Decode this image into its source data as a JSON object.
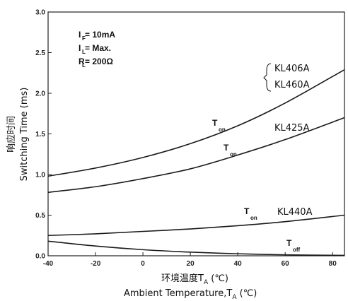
{
  "chart_data": {
    "type": "line",
    "xlim": [
      -40,
      85
    ],
    "ylim": [
      0,
      3.0
    ],
    "x_ticks": [
      "-40",
      "-20",
      "0",
      "20",
      "40",
      "60",
      "80"
    ],
    "y_ticks": [
      "0.0",
      "0.5",
      "1.0",
      "1.5",
      "2.0",
      "2.5",
      "3.0"
    ],
    "xlabel_cn": "环境温度T",
    "xlabel_cn_sub": "A",
    "xlabel_cn_unit": " (℃)",
    "xlabel_en": "Ambient Temperature,T",
    "xlabel_en_sub": "A",
    "xlabel_en_unit": " (℃)",
    "ylabel_cn": "响应时间",
    "ylabel_en": "Switching Time (ms)",
    "grid": false,
    "conditions": [
      {
        "main": "I",
        "sub": "F",
        "rest": " = 10mA"
      },
      {
        "main": "I",
        "sub": "L",
        "rest": " = Max."
      },
      {
        "main": "R",
        "sub": "L",
        "rest": " = 200Ω"
      }
    ],
    "series": [
      {
        "x": [
          -40,
          -20,
          0,
          20,
          40,
          60,
          85
        ],
        "y": [
          0.98,
          1.08,
          1.21,
          1.38,
          1.6,
          1.88,
          2.29
        ]
      },
      {
        "x": [
          -40,
          -20,
          0,
          20,
          40,
          60,
          85
        ],
        "y": [
          0.78,
          0.85,
          0.95,
          1.07,
          1.24,
          1.43,
          1.7
        ]
      },
      {
        "x": [
          -40,
          -20,
          0,
          20,
          40,
          60,
          85
        ],
        "y": [
          0.25,
          0.27,
          0.3,
          0.33,
          0.37,
          0.42,
          0.5
        ]
      },
      {
        "x": [
          -40,
          -20,
          0,
          20,
          40,
          60,
          85
        ],
        "y": [
          0.18,
          0.12,
          0.075,
          0.045,
          0.025,
          0.012,
          0.005
        ]
      }
    ],
    "annotations": {
      "curve_labels": [
        "KL406A",
        "KL460A",
        "KL425A",
        "KL440A"
      ],
      "ton_main": "T",
      "ton_sub": "on",
      "toff_main": "T",
      "toff_sub": "off"
    }
  }
}
